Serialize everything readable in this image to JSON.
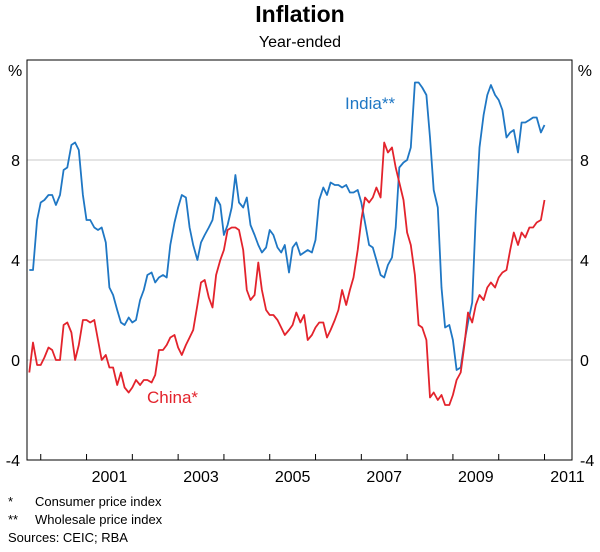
{
  "chart_data": {
    "type": "line",
    "title": "Inflation",
    "subtitle": "Year-ended",
    "unit_left": "%",
    "unit_right": "%",
    "ylim": [
      -4,
      12
    ],
    "yticks": [
      -4,
      0,
      4,
      8
    ],
    "xlim": [
      1999.7,
      2011.6
    ],
    "xticks": [
      2001,
      2003,
      2005,
      2007,
      2009,
      2011
    ],
    "grid": true,
    "series": [
      {
        "name": "India**",
        "color": "#1f77c4",
        "points": [
          [
            1999.75,
            3.6
          ],
          [
            1999.83,
            3.6
          ],
          [
            1999.92,
            5.6
          ],
          [
            2000.0,
            6.3
          ],
          [
            2000.08,
            6.4
          ],
          [
            2000.17,
            6.6
          ],
          [
            2000.25,
            6.6
          ],
          [
            2000.33,
            6.2
          ],
          [
            2000.42,
            6.6
          ],
          [
            2000.5,
            7.6
          ],
          [
            2000.58,
            7.7
          ],
          [
            2000.67,
            8.6
          ],
          [
            2000.75,
            8.7
          ],
          [
            2000.83,
            8.4
          ],
          [
            2000.92,
            6.6
          ],
          [
            2001.0,
            5.6
          ],
          [
            2001.08,
            5.6
          ],
          [
            2001.17,
            5.3
          ],
          [
            2001.25,
            5.2
          ],
          [
            2001.33,
            5.3
          ],
          [
            2001.42,
            4.7
          ],
          [
            2001.5,
            2.9
          ],
          [
            2001.58,
            2.6
          ],
          [
            2001.67,
            2.0
          ],
          [
            2001.75,
            1.5
          ],
          [
            2001.83,
            1.4
          ],
          [
            2001.92,
            1.7
          ],
          [
            2002.0,
            1.5
          ],
          [
            2002.08,
            1.6
          ],
          [
            2002.17,
            2.4
          ],
          [
            2002.25,
            2.8
          ],
          [
            2002.33,
            3.4
          ],
          [
            2002.42,
            3.5
          ],
          [
            2002.5,
            3.1
          ],
          [
            2002.58,
            3.3
          ],
          [
            2002.67,
            3.4
          ],
          [
            2002.75,
            3.3
          ],
          [
            2002.83,
            4.6
          ],
          [
            2002.92,
            5.5
          ],
          [
            2003.0,
            6.1
          ],
          [
            2003.08,
            6.6
          ],
          [
            2003.17,
            6.5
          ],
          [
            2003.25,
            5.3
          ],
          [
            2003.33,
            4.6
          ],
          [
            2003.42,
            4.0
          ],
          [
            2003.5,
            4.7
          ],
          [
            2003.58,
            5.0
          ],
          [
            2003.67,
            5.3
          ],
          [
            2003.75,
            5.6
          ],
          [
            2003.83,
            6.5
          ],
          [
            2003.92,
            6.2
          ],
          [
            2004.0,
            5.0
          ],
          [
            2004.08,
            5.4
          ],
          [
            2004.17,
            6.1
          ],
          [
            2004.25,
            7.4
          ],
          [
            2004.33,
            6.3
          ],
          [
            2004.42,
            6.1
          ],
          [
            2004.5,
            6.5
          ],
          [
            2004.58,
            5.4
          ],
          [
            2004.67,
            5.0
          ],
          [
            2004.75,
            4.6
          ],
          [
            2004.83,
            4.3
          ],
          [
            2004.92,
            4.5
          ],
          [
            2005.0,
            5.2
          ],
          [
            2005.08,
            5.0
          ],
          [
            2005.17,
            4.5
          ],
          [
            2005.25,
            4.3
          ],
          [
            2005.33,
            4.6
          ],
          [
            2005.42,
            3.5
          ],
          [
            2005.5,
            4.5
          ],
          [
            2005.58,
            4.7
          ],
          [
            2005.67,
            4.2
          ],
          [
            2005.75,
            4.3
          ],
          [
            2005.83,
            4.4
          ],
          [
            2005.92,
            4.3
          ],
          [
            2006.0,
            4.8
          ],
          [
            2006.08,
            6.4
          ],
          [
            2006.17,
            6.9
          ],
          [
            2006.25,
            6.6
          ],
          [
            2006.33,
            7.1
          ],
          [
            2006.42,
            7.0
          ],
          [
            2006.5,
            7.0
          ],
          [
            2006.58,
            6.9
          ],
          [
            2006.67,
            7.0
          ],
          [
            2006.75,
            6.7
          ],
          [
            2006.83,
            6.7
          ],
          [
            2006.92,
            6.8
          ],
          [
            2007.0,
            6.3
          ],
          [
            2007.08,
            5.5
          ],
          [
            2007.17,
            4.6
          ],
          [
            2007.25,
            4.5
          ],
          [
            2007.33,
            4.0
          ],
          [
            2007.42,
            3.4
          ],
          [
            2007.5,
            3.3
          ],
          [
            2007.58,
            3.8
          ],
          [
            2007.67,
            4.1
          ],
          [
            2007.75,
            5.3
          ],
          [
            2007.83,
            7.7
          ],
          [
            2007.92,
            7.9
          ],
          [
            2008.0,
            8.0
          ],
          [
            2008.08,
            8.5
          ],
          [
            2008.17,
            11.1
          ],
          [
            2008.25,
            11.1
          ],
          [
            2008.33,
            10.9
          ],
          [
            2008.42,
            10.6
          ],
          [
            2008.5,
            8.9
          ],
          [
            2008.58,
            6.8
          ],
          [
            2008.67,
            6.1
          ],
          [
            2008.75,
            2.9
          ],
          [
            2008.83,
            1.3
          ],
          [
            2008.92,
            1.4
          ],
          [
            2009.0,
            0.8
          ],
          [
            2009.08,
            -0.4
          ],
          [
            2009.17,
            -0.3
          ],
          [
            2009.25,
            0.7
          ],
          [
            2009.33,
            1.5
          ],
          [
            2009.42,
            2.3
          ],
          [
            2009.5,
            5.8
          ],
          [
            2009.58,
            8.5
          ],
          [
            2009.67,
            9.8
          ],
          [
            2009.75,
            10.6
          ],
          [
            2009.83,
            11.0
          ],
          [
            2009.92,
            10.6
          ],
          [
            2010.0,
            10.4
          ],
          [
            2010.08,
            10.0
          ],
          [
            2010.17,
            8.9
          ],
          [
            2010.25,
            9.1
          ],
          [
            2010.33,
            9.2
          ],
          [
            2010.42,
            8.3
          ],
          [
            2010.5,
            9.5
          ],
          [
            2010.58,
            9.5
          ],
          [
            2010.67,
            9.6
          ],
          [
            2010.75,
            9.7
          ],
          [
            2010.83,
            9.7
          ],
          [
            2010.92,
            9.1
          ],
          [
            2011.0,
            9.4
          ]
        ]
      },
      {
        "name": "China*",
        "color": "#e3232c",
        "points": [
          [
            1999.75,
            -0.5
          ],
          [
            1999.83,
            0.7
          ],
          [
            1999.92,
            -0.2
          ],
          [
            2000.0,
            -0.2
          ],
          [
            2000.08,
            0.1
          ],
          [
            2000.17,
            0.5
          ],
          [
            2000.25,
            0.4
          ],
          [
            2000.33,
            0.0
          ],
          [
            2000.42,
            0.0
          ],
          [
            2000.5,
            1.4
          ],
          [
            2000.58,
            1.5
          ],
          [
            2000.67,
            1.1
          ],
          [
            2000.75,
            0.0
          ],
          [
            2000.83,
            0.6
          ],
          [
            2000.92,
            1.6
          ],
          [
            2001.0,
            1.6
          ],
          [
            2001.08,
            1.5
          ],
          [
            2001.17,
            1.6
          ],
          [
            2001.25,
            0.8
          ],
          [
            2001.33,
            0.0
          ],
          [
            2001.42,
            0.2
          ],
          [
            2001.5,
            -0.3
          ],
          [
            2001.58,
            -0.3
          ],
          [
            2001.67,
            -1.0
          ],
          [
            2001.75,
            -0.5
          ],
          [
            2001.83,
            -1.1
          ],
          [
            2001.92,
            -1.3
          ],
          [
            2002.0,
            -1.1
          ],
          [
            2002.08,
            -0.8
          ],
          [
            2002.17,
            -1.0
          ],
          [
            2002.25,
            -0.8
          ],
          [
            2002.33,
            -0.8
          ],
          [
            2002.42,
            -0.9
          ],
          [
            2002.5,
            -0.6
          ],
          [
            2002.58,
            0.4
          ],
          [
            2002.67,
            0.4
          ],
          [
            2002.75,
            0.6
          ],
          [
            2002.83,
            0.9
          ],
          [
            2002.92,
            1.0
          ],
          [
            2003.0,
            0.5
          ],
          [
            2003.08,
            0.2
          ],
          [
            2003.17,
            0.6
          ],
          [
            2003.25,
            0.9
          ],
          [
            2003.33,
            1.2
          ],
          [
            2003.42,
            2.2
          ],
          [
            2003.5,
            3.1
          ],
          [
            2003.58,
            3.2
          ],
          [
            2003.67,
            2.5
          ],
          [
            2003.75,
            2.1
          ],
          [
            2003.83,
            3.4
          ],
          [
            2003.92,
            4.0
          ],
          [
            2004.0,
            4.4
          ],
          [
            2004.08,
            5.2
          ],
          [
            2004.17,
            5.3
          ],
          [
            2004.25,
            5.3
          ],
          [
            2004.33,
            5.2
          ],
          [
            2004.42,
            4.4
          ],
          [
            2004.5,
            2.8
          ],
          [
            2004.58,
            2.4
          ],
          [
            2004.67,
            2.6
          ],
          [
            2004.75,
            3.9
          ],
          [
            2004.83,
            2.8
          ],
          [
            2004.92,
            2.0
          ],
          [
            2005.0,
            1.8
          ],
          [
            2005.08,
            1.8
          ],
          [
            2005.17,
            1.6
          ],
          [
            2005.25,
            1.3
          ],
          [
            2005.33,
            1.0
          ],
          [
            2005.42,
            1.2
          ],
          [
            2005.5,
            1.4
          ],
          [
            2005.58,
            1.9
          ],
          [
            2005.67,
            1.5
          ],
          [
            2005.75,
            1.8
          ],
          [
            2005.83,
            0.8
          ],
          [
            2005.92,
            1.0
          ],
          [
            2006.0,
            1.3
          ],
          [
            2006.08,
            1.5
          ],
          [
            2006.17,
            1.5
          ],
          [
            2006.25,
            0.9
          ],
          [
            2006.33,
            1.2
          ],
          [
            2006.42,
            1.6
          ],
          [
            2006.5,
            2.0
          ],
          [
            2006.58,
            2.8
          ],
          [
            2006.67,
            2.2
          ],
          [
            2006.75,
            2.8
          ],
          [
            2006.83,
            3.3
          ],
          [
            2006.92,
            4.4
          ],
          [
            2007.0,
            5.6
          ],
          [
            2007.08,
            6.5
          ],
          [
            2007.17,
            6.3
          ],
          [
            2007.25,
            6.5
          ],
          [
            2007.33,
            6.9
          ],
          [
            2007.42,
            6.5
          ],
          [
            2007.5,
            8.7
          ],
          [
            2007.58,
            8.3
          ],
          [
            2007.67,
            8.5
          ],
          [
            2007.75,
            7.7
          ],
          [
            2007.83,
            7.1
          ],
          [
            2007.92,
            6.4
          ],
          [
            2008.0,
            5.1
          ],
          [
            2008.08,
            4.6
          ],
          [
            2008.17,
            3.4
          ],
          [
            2008.25,
            1.4
          ],
          [
            2008.33,
            1.3
          ],
          [
            2008.42,
            0.8
          ],
          [
            2008.5,
            -1.5
          ],
          [
            2008.58,
            -1.3
          ],
          [
            2008.67,
            -1.6
          ],
          [
            2008.75,
            -1.4
          ],
          [
            2008.83,
            -1.8
          ],
          [
            2008.92,
            -1.8
          ],
          [
            2009.0,
            -1.4
          ],
          [
            2009.08,
            -0.8
          ],
          [
            2009.17,
            -0.5
          ],
          [
            2009.25,
            0.6
          ],
          [
            2009.33,
            1.9
          ],
          [
            2009.42,
            1.5
          ],
          [
            2009.5,
            2.2
          ],
          [
            2009.58,
            2.6
          ],
          [
            2009.67,
            2.4
          ],
          [
            2009.75,
            2.9
          ],
          [
            2009.83,
            3.1
          ],
          [
            2009.92,
            2.9
          ],
          [
            2010.0,
            3.3
          ],
          [
            2010.08,
            3.5
          ],
          [
            2010.17,
            3.6
          ],
          [
            2010.25,
            4.4
          ],
          [
            2010.33,
            5.1
          ],
          [
            2010.42,
            4.6
          ],
          [
            2010.5,
            5.1
          ],
          [
            2010.58,
            4.9
          ],
          [
            2010.67,
            5.3
          ],
          [
            2010.75,
            5.3
          ],
          [
            2010.83,
            5.5
          ],
          [
            2010.92,
            5.6
          ],
          [
            2011.0,
            6.4
          ]
        ]
      }
    ]
  },
  "notes": [
    {
      "mark": "*",
      "text": "Consumer price index"
    },
    {
      "mark": "**",
      "text": "Wholesale price index"
    }
  ],
  "sources": "Sources: CEIC; RBA"
}
